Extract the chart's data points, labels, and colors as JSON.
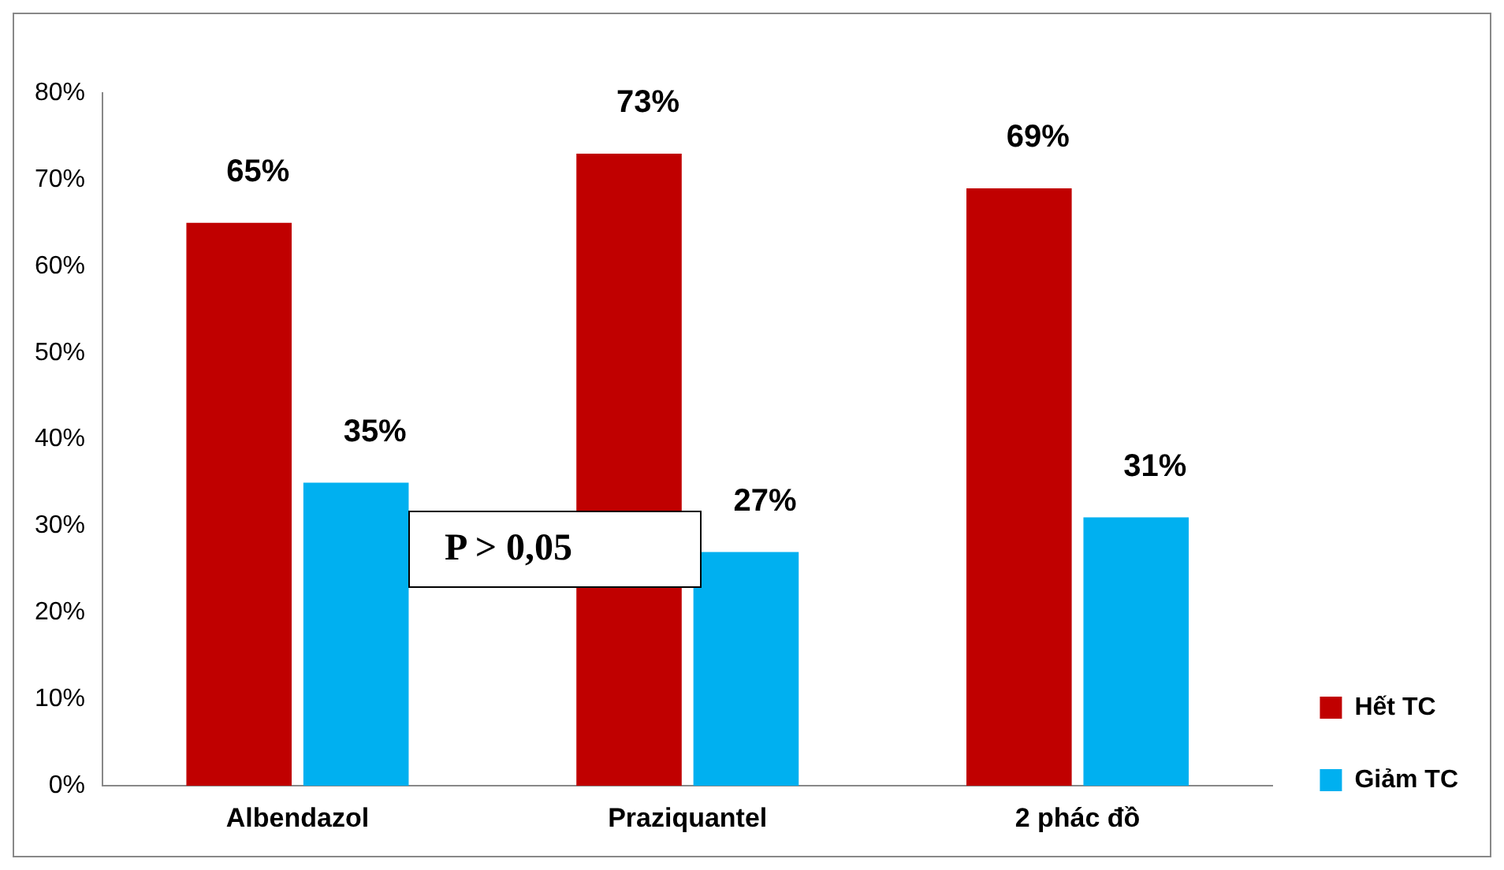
{
  "chart_data": {
    "type": "bar",
    "categories": [
      "Albendazol",
      "Praziquantel",
      "2 phác đồ"
    ],
    "series": [
      {
        "name": "Hết TC",
        "color": "#c00000",
        "values": [
          65,
          73,
          69
        ],
        "value_labels": [
          "65%",
          "73%",
          "69%"
        ]
      },
      {
        "name": "Giảm TC",
        "color": "#00b0f0",
        "values": [
          35,
          27,
          31
        ],
        "value_labels": [
          "35%",
          "27%",
          "31%"
        ]
      }
    ],
    "ylim": [
      0,
      80
    ],
    "yticks": [
      {
        "value": 0,
        "label": "0%"
      },
      {
        "value": 10,
        "label": "10%"
      },
      {
        "value": 20,
        "label": "20%"
      },
      {
        "value": 30,
        "label": "30%"
      },
      {
        "value": 40,
        "label": "40%"
      },
      {
        "value": 50,
        "label": "50%"
      },
      {
        "value": 60,
        "label": "60%"
      },
      {
        "value": 70,
        "label": "70%"
      },
      {
        "value": 80,
        "label": "80%"
      }
    ],
    "grid": false,
    "legend": "bottom right",
    "annotations": [
      "P > 0,05"
    ]
  }
}
